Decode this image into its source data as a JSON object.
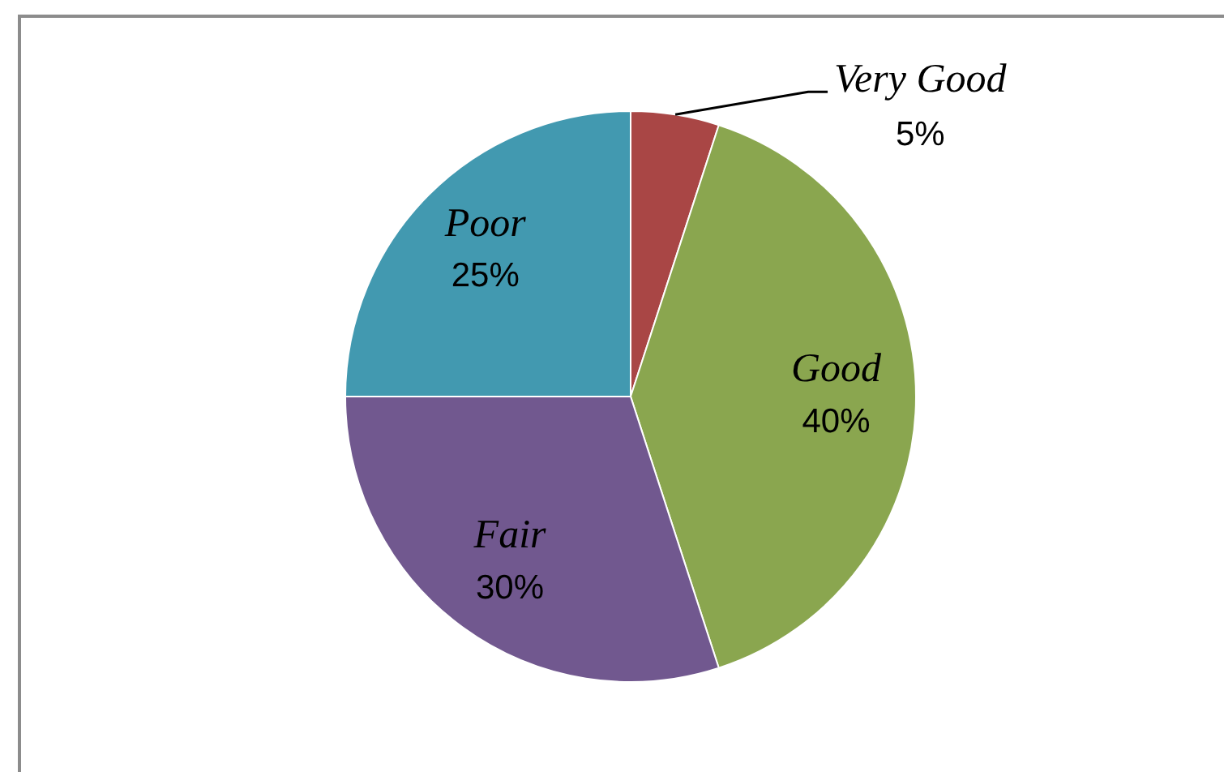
{
  "chart_data": {
    "type": "pie",
    "categories": [
      "Very Good",
      "Good",
      "Fair",
      "Poor"
    ],
    "values": [
      5,
      40,
      30,
      25
    ],
    "colors": [
      "#a94645",
      "#8aa64f",
      "#71588f",
      "#4299b0"
    ],
    "value_labels": [
      "5%",
      "40%",
      "30%",
      "25%"
    ],
    "legend": false
  }
}
